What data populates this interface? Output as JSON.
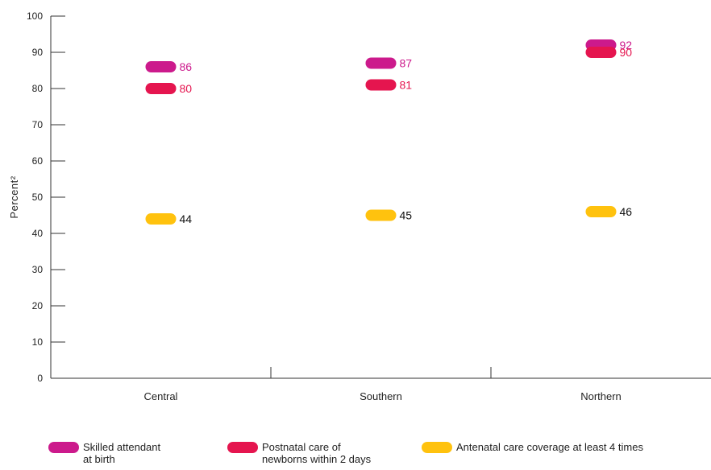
{
  "chart_data": {
    "type": "scatter",
    "categories": [
      "Central",
      "Southern",
      "Northern"
    ],
    "series": [
      {
        "name": "Skilled attendant at birth",
        "legend_text": "Skilled attendant\nat birth",
        "color": "#cc1a8c",
        "label_color": "#cc1a8c",
        "values": [
          86,
          87,
          92
        ]
      },
      {
        "name": "Postnatal care of newborns within 2 days",
        "legend_text": "Postnatal care of\nnewborns within 2 days",
        "color": "#e5154f",
        "label_color": "#e5154f",
        "values": [
          80,
          81,
          90
        ]
      },
      {
        "name": "Antenatal care coverage at least 4 times",
        "legend_text": "Antenatal care coverage at least 4 times",
        "color": "#ffc20e",
        "label_color": "#111111",
        "values": [
          44,
          45,
          46
        ]
      }
    ],
    "data_labels": [
      [
        "86",
        "87",
        "92"
      ],
      [
        "80",
        "81",
        "90"
      ],
      [
        "44",
        "45",
        "46"
      ]
    ],
    "ylabel": "Percent²",
    "yticks": [
      "0",
      "10",
      "20",
      "30",
      "40",
      "50",
      "60",
      "70",
      "80",
      "90",
      "100"
    ],
    "ylim": [
      0,
      100
    ],
    "grid": false,
    "legend_position": "bottom"
  }
}
